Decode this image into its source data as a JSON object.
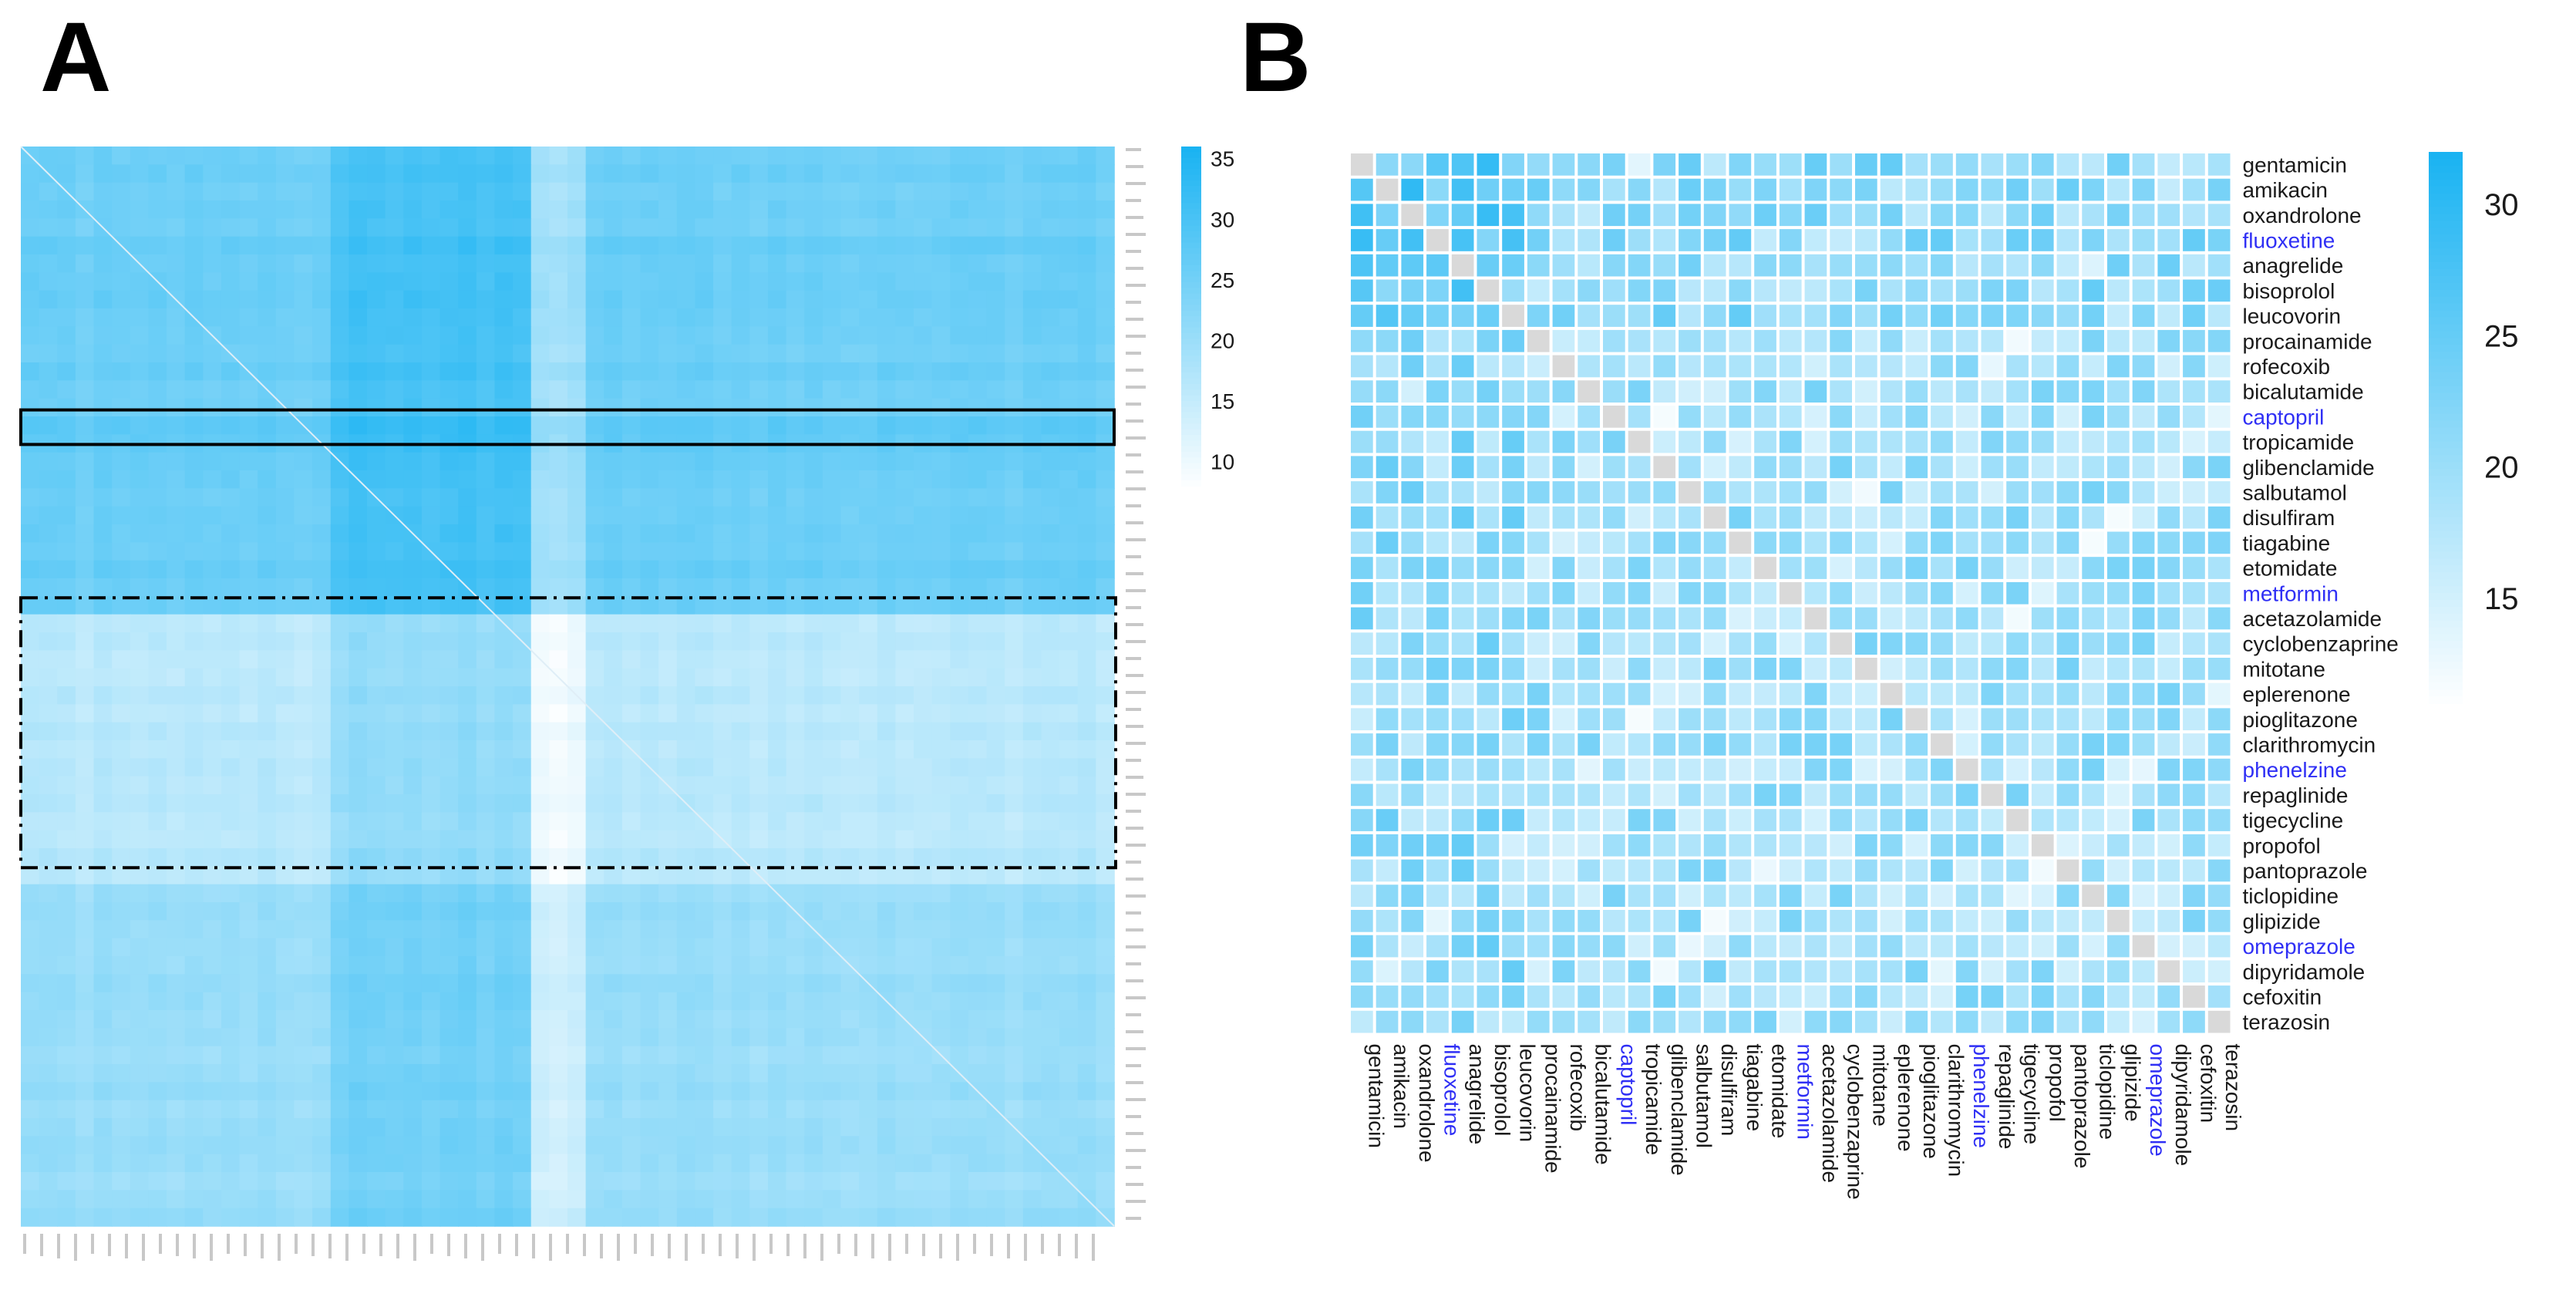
{
  "panel_labels": {
    "a": "A",
    "b": "B"
  },
  "colors": {
    "scale_low": "#ffffff",
    "scale_high": "#1ab3f2",
    "diagonal": "#d9d9d9",
    "highlight_text": "#2f2ff5",
    "label_text": "#1a1a1a",
    "box_line": "#000000"
  },
  "chart_data": [
    {
      "type": "heatmap",
      "panel": "A",
      "title": "",
      "description_rows": 300,
      "value_range": [
        8,
        36
      ],
      "colorbar": {
        "ticks": [
          35,
          30,
          25,
          20,
          15,
          10
        ]
      },
      "highlight_row_fraction": [
        0.244,
        0.276
      ],
      "highlight_band_fraction": [
        0.418,
        0.668
      ],
      "row_labels_note": "row and column labels illegible in source"
    },
    {
      "type": "heatmap",
      "panel": "B",
      "title": "",
      "drugs": [
        "gentamicin",
        "amikacin",
        "oxandrolone",
        "fluoxetine",
        "anagrelide",
        "bisoprolol",
        "leucovorin",
        "procainamide",
        "rofecoxib",
        "bicalutamide",
        "captopril",
        "tropicamide",
        "glibenclamide",
        "salbutamol",
        "disulfiram",
        "tiagabine",
        "etomidate",
        "metformin",
        "acetazolamide",
        "cyclobenzaprine",
        "mitotane",
        "eplerenone",
        "pioglitazone",
        "clarithromycin",
        "phenelzine",
        "repaglinide",
        "tigecycline",
        "propofol",
        "pantoprazole",
        "ticlopidine",
        "glipizide",
        "omeprazole",
        "dipyridamole",
        "cefoxitin",
        "terazosin"
      ],
      "highlighted": [
        "fluoxetine",
        "captopril",
        "metformin",
        "phenelzine",
        "omeprazole"
      ],
      "value_range": [
        11,
        32
      ],
      "colorbar": {
        "ticks": [
          30,
          25,
          20,
          15
        ]
      },
      "diagonal": "self-comparison shown in grey"
    }
  ]
}
